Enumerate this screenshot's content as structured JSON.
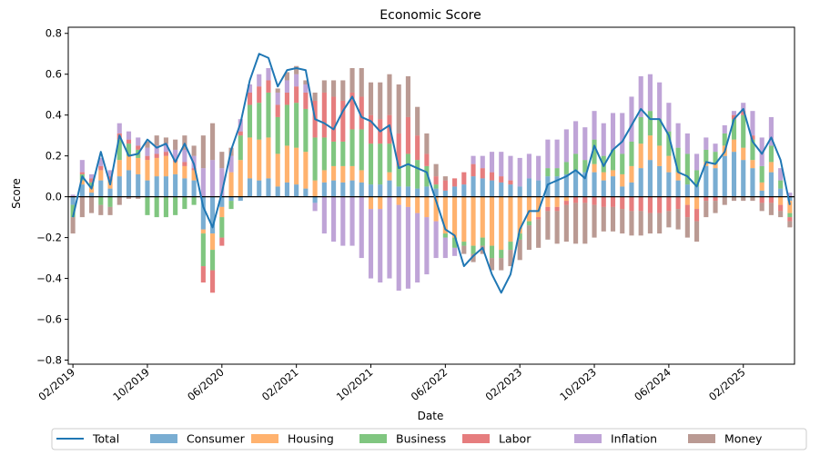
{
  "chart_data": {
    "type": "bar",
    "subtype": "stacked-bar-with-line",
    "title": "Economic Score",
    "xlabel": "Date",
    "ylabel": "Score",
    "ylim": [
      -0.82,
      0.83
    ],
    "yticks": [
      "0.8",
      "0.6",
      "0.4",
      "0.2",
      "0.0",
      "−0.2",
      "−0.4",
      "−0.6",
      "−0.8"
    ],
    "ytick_values": [
      0.8,
      0.6,
      0.4,
      0.2,
      0.0,
      -0.2,
      -0.4,
      -0.6,
      -0.8
    ],
    "xticks": [
      "02/2019",
      "10/2019",
      "06/2020",
      "02/2021",
      "10/2021",
      "06/2022",
      "02/2023",
      "10/2023",
      "06/2024",
      "02/2025"
    ],
    "xtick_index": [
      0,
      8,
      16,
      24,
      32,
      40,
      48,
      56,
      64,
      72
    ],
    "dates": [
      "2019-01",
      "2019-02",
      "2019-03",
      "2019-04",
      "2019-05",
      "2019-06",
      "2019-07",
      "2019-08",
      "2019-09",
      "2019-10",
      "2019-11",
      "2019-12",
      "2020-01",
      "2020-02",
      "2020-03",
      "2020-04",
      "2020-05",
      "2020-06",
      "2020-07",
      "2020-08",
      "2020-09",
      "2020-10",
      "2020-11",
      "2020-12",
      "2021-01",
      "2021-02",
      "2021-03",
      "2021-04",
      "2021-05",
      "2021-06",
      "2021-07",
      "2021-08",
      "2021-09",
      "2021-10",
      "2021-11",
      "2021-12",
      "2022-01",
      "2022-02",
      "2022-03",
      "2022-04",
      "2022-05",
      "2022-06",
      "2022-07",
      "2022-08",
      "2022-09",
      "2022-10",
      "2022-11",
      "2022-12",
      "2023-01",
      "2023-02",
      "2023-03",
      "2023-04",
      "2023-05",
      "2023-06",
      "2023-07",
      "2023-08",
      "2023-09",
      "2023-10",
      "2023-11",
      "2023-12",
      "2024-01",
      "2024-02",
      "2024-03",
      "2024-04",
      "2024-05",
      "2024-06",
      "2024-07",
      "2024-08",
      "2024-09",
      "2024-10",
      "2024-11",
      "2024-12",
      "2025-01",
      "2025-02",
      "2025-03",
      "2025-04",
      "2025-05",
      "2025-06"
    ],
    "grid": false,
    "legend_position": "bottom",
    "series": [
      {
        "name": "Total",
        "kind": "line",
        "color": "#1f77b4",
        "values": [
          -0.1,
          0.1,
          0.04,
          0.22,
          0.06,
          0.3,
          0.2,
          0.21,
          0.28,
          0.24,
          0.26,
          0.17,
          0.26,
          0.16,
          -0.05,
          -0.15,
          0.02,
          0.23,
          0.36,
          0.57,
          0.7,
          0.68,
          0.54,
          0.62,
          0.63,
          0.62,
          0.38,
          0.36,
          0.33,
          0.42,
          0.49,
          0.39,
          0.37,
          0.32,
          0.35,
          0.14,
          0.16,
          0.14,
          0.12,
          -0.02,
          -0.16,
          -0.19,
          -0.34,
          -0.29,
          -0.25,
          -0.38,
          -0.47,
          -0.38,
          -0.16,
          -0.07,
          -0.07,
          0.06,
          0.08,
          0.1,
          0.13,
          0.09,
          0.25,
          0.15,
          0.23,
          0.27,
          0.35,
          0.43,
          0.38,
          0.38,
          0.3,
          0.12,
          0.1,
          0.05,
          0.17,
          0.16,
          0.22,
          0.38,
          0.43,
          0.27,
          0.21,
          0.29,
          0.18,
          -0.04
        ]
      },
      {
        "name": "Consumer",
        "kind": "bar",
        "color": "#1f77b4",
        "values": [
          -0.04,
          0.06,
          0.02,
          0.08,
          0.04,
          0.1,
          0.13,
          0.11,
          0.08,
          0.1,
          0.1,
          0.11,
          0.09,
          0.08,
          -0.16,
          -0.18,
          -0.05,
          -0.02,
          -0.02,
          0.09,
          0.08,
          0.09,
          0.05,
          0.07,
          0.06,
          0.04,
          -0.03,
          0.07,
          0.08,
          0.07,
          0.08,
          0.07,
          0.06,
          0.06,
          0.08,
          0.05,
          0.05,
          0.04,
          0.05,
          0.04,
          0.03,
          0.05,
          0.06,
          0.1,
          0.09,
          0.08,
          0.07,
          0.06,
          0.05,
          0.09,
          0.08,
          0.1,
          0.1,
          0.11,
          0.13,
          0.12,
          0.12,
          0.08,
          0.1,
          0.05,
          0.07,
          0.14,
          0.18,
          0.15,
          0.12,
          0.08,
          0.06,
          0.05,
          0.15,
          0.14,
          0.2,
          0.22,
          0.18,
          0.14,
          0.03,
          0.12,
          0.04,
          -0.02
        ]
      },
      {
        "name": "Housing",
        "kind": "bar",
        "color": "#ff7f0e",
        "values": [
          0.0,
          0.02,
          0.03,
          0.05,
          0.04,
          0.08,
          0.07,
          0.08,
          0.1,
          0.09,
          0.1,
          0.06,
          0.06,
          0.05,
          -0.02,
          -0.08,
          -0.05,
          0.12,
          0.18,
          0.2,
          0.2,
          0.2,
          0.16,
          0.18,
          0.18,
          0.18,
          0.08,
          0.06,
          0.07,
          0.08,
          0.07,
          0.06,
          -0.06,
          -0.06,
          0.04,
          -0.04,
          -0.05,
          -0.08,
          -0.1,
          -0.12,
          -0.18,
          -0.2,
          -0.22,
          -0.24,
          -0.2,
          -0.24,
          -0.26,
          -0.22,
          -0.18,
          -0.12,
          -0.1,
          -0.05,
          -0.05,
          -0.02,
          0.0,
          0.0,
          0.04,
          0.04,
          0.03,
          0.06,
          0.08,
          0.12,
          0.12,
          0.1,
          0.08,
          0.04,
          -0.04,
          -0.06,
          0.02,
          0.02,
          0.05,
          0.06,
          0.06,
          0.04,
          0.04,
          0.05,
          -0.04,
          -0.06
        ]
      },
      {
        "name": "Business",
        "kind": "bar",
        "color": "#2ca02c",
        "values": [
          -0.06,
          0.03,
          0.02,
          -0.04,
          -0.05,
          0.1,
          0.06,
          0.04,
          -0.09,
          -0.1,
          -0.1,
          -0.09,
          -0.06,
          -0.04,
          -0.16,
          -0.1,
          -0.1,
          -0.04,
          0.12,
          0.16,
          0.18,
          0.22,
          0.18,
          0.2,
          0.22,
          0.21,
          0.21,
          0.16,
          0.12,
          0.12,
          0.18,
          0.2,
          0.2,
          0.2,
          0.14,
          0.1,
          0.16,
          0.14,
          0.1,
          0.02,
          -0.02,
          -0.05,
          -0.02,
          -0.04,
          -0.04,
          -0.06,
          -0.04,
          -0.04,
          -0.03,
          -0.02,
          0.0,
          0.04,
          0.04,
          0.06,
          0.08,
          0.06,
          0.12,
          0.08,
          0.1,
          0.1,
          0.12,
          0.13,
          0.12,
          0.13,
          0.12,
          0.12,
          0.15,
          0.08,
          0.06,
          0.06,
          0.06,
          0.1,
          0.16,
          0.1,
          0.08,
          0.08,
          0.04,
          -0.02
        ]
      },
      {
        "name": "Labor",
        "kind": "bar",
        "color": "#d62728",
        "values": [
          0.0,
          0.01,
          0.02,
          0.02,
          0.02,
          0.03,
          0.02,
          0.02,
          0.02,
          0.02,
          0.02,
          0.01,
          0.02,
          0.01,
          -0.08,
          -0.11,
          -0.04,
          0.0,
          0.02,
          0.06,
          0.08,
          0.06,
          0.06,
          0.06,
          0.08,
          0.08,
          0.18,
          0.22,
          0.22,
          0.2,
          0.18,
          0.16,
          0.14,
          0.12,
          0.14,
          0.16,
          0.18,
          0.12,
          0.06,
          0.04,
          0.05,
          0.04,
          0.06,
          0.06,
          0.05,
          0.04,
          0.03,
          0.02,
          0.0,
          0.0,
          -0.01,
          -0.02,
          -0.02,
          -0.02,
          -0.03,
          -0.03,
          -0.04,
          -0.05,
          -0.05,
          -0.06,
          -0.07,
          -0.07,
          -0.08,
          -0.08,
          -0.07,
          -0.06,
          -0.06,
          -0.06,
          -0.02,
          -0.02,
          0.0,
          0.02,
          0.02,
          0.02,
          -0.03,
          -0.03,
          -0.03,
          -0.02
        ]
      },
      {
        "name": "Inflation",
        "kind": "bar",
        "color": "#9467bd",
        "values": [
          0.01,
          0.06,
          0.02,
          0.04,
          0.03,
          0.05,
          0.04,
          0.04,
          0.04,
          0.04,
          0.04,
          0.05,
          0.06,
          0.06,
          0.14,
          0.18,
          0.14,
          0.08,
          0.06,
          0.04,
          0.06,
          0.06,
          0.06,
          0.06,
          0.06,
          0.04,
          -0.04,
          -0.18,
          -0.22,
          -0.24,
          -0.24,
          -0.3,
          -0.34,
          -0.36,
          -0.4,
          -0.42,
          -0.4,
          -0.34,
          -0.28,
          -0.18,
          -0.1,
          -0.04,
          0.0,
          0.04,
          0.06,
          0.1,
          0.12,
          0.12,
          0.14,
          0.12,
          0.12,
          0.14,
          0.14,
          0.16,
          0.16,
          0.16,
          0.14,
          0.16,
          0.18,
          0.2,
          0.22,
          0.2,
          0.18,
          0.18,
          0.14,
          0.12,
          0.1,
          0.08,
          0.06,
          0.04,
          0.04,
          0.02,
          0.04,
          0.12,
          0.14,
          0.14,
          0.06,
          0.02
        ]
      },
      {
        "name": "Money",
        "kind": "bar",
        "color": "#8c564b",
        "values": [
          -0.08,
          -0.1,
          -0.08,
          -0.05,
          -0.04,
          -0.04,
          -0.01,
          -0.01,
          0.03,
          0.05,
          0.03,
          0.05,
          0.07,
          0.05,
          0.16,
          0.18,
          0.08,
          0.04,
          0.0,
          0.0,
          0.0,
          0.0,
          0.02,
          0.04,
          0.04,
          0.02,
          0.04,
          0.06,
          0.08,
          0.1,
          0.12,
          0.14,
          0.16,
          0.18,
          0.2,
          0.24,
          0.2,
          0.14,
          0.1,
          0.06,
          0.02,
          0.0,
          -0.04,
          -0.04,
          -0.04,
          -0.06,
          -0.06,
          -0.08,
          -0.1,
          -0.12,
          -0.14,
          -0.14,
          -0.16,
          -0.18,
          -0.2,
          -0.2,
          -0.16,
          -0.12,
          -0.12,
          -0.12,
          -0.12,
          -0.12,
          -0.1,
          -0.1,
          -0.08,
          -0.1,
          -0.1,
          -0.1,
          -0.08,
          -0.06,
          -0.04,
          -0.02,
          -0.02,
          -0.02,
          -0.04,
          -0.06,
          -0.03,
          -0.03
        ]
      }
    ]
  }
}
